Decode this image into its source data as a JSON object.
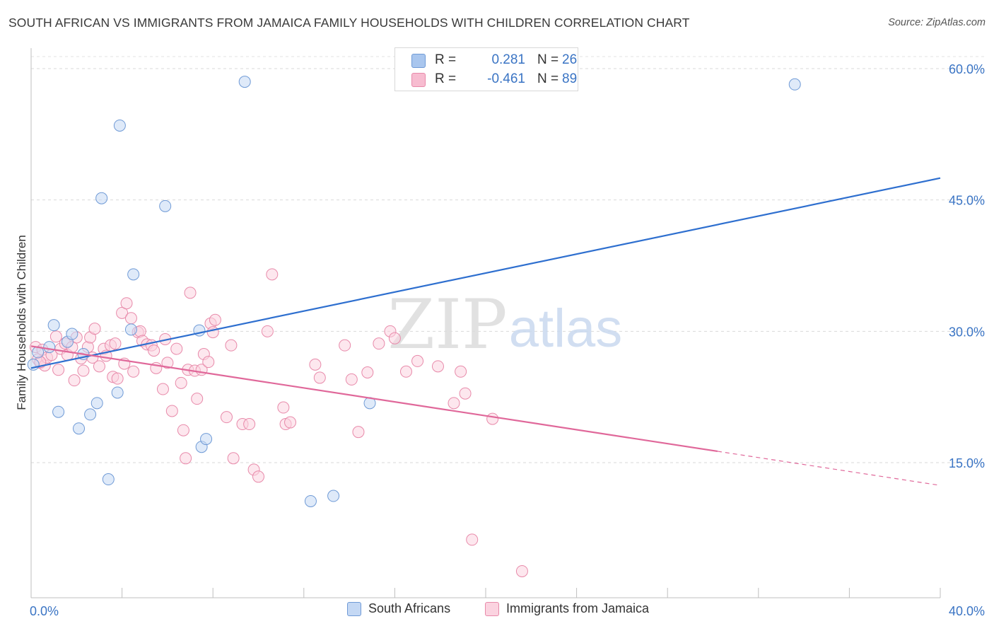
{
  "title": "SOUTH AFRICAN VS IMMIGRANTS FROM JAMAICA FAMILY HOUSEHOLDS WITH CHILDREN CORRELATION CHART",
  "source": "Source: ZipAtlas.com",
  "watermark": {
    "zip": "ZIP",
    "atlas": "atlas"
  },
  "legend_top": [
    {
      "label": "R =",
      "r": "0.281",
      "n_label": "N =",
      "n": "26",
      "color": "#a9c6ee",
      "edge": "#6f9ad6"
    },
    {
      "label": "R =",
      "r": "-0.461",
      "n_label": "N =",
      "n": "89",
      "color": "#f7bcd0",
      "edge": "#e88aaa"
    }
  ],
  "legend_bottom": [
    {
      "label": "South Africans",
      "color": "#c4d8f4",
      "edge": "#6f9ad6"
    },
    {
      "label": "Immigrants from Jamaica",
      "color": "#fbd3e0",
      "edge": "#e88aaa"
    }
  ],
  "chart_data": {
    "type": "scatter",
    "title": "SOUTH AFRICAN VS IMMIGRANTS FROM JAMAICA FAMILY HOUSEHOLDS WITH CHILDREN CORRELATION CHART",
    "xlabel": "",
    "ylabel": "Family Households with Children",
    "xlim": [
      0,
      40
    ],
    "ylim": [
      0,
      60
    ],
    "x_tick_labels": [
      {
        "value": 0,
        "label": "0.0%"
      },
      {
        "value": 40,
        "label": "40.0%"
      }
    ],
    "y_tick_labels": [
      {
        "value": 15,
        "label": "15.0%"
      },
      {
        "value": 30,
        "label": "30.0%"
      },
      {
        "value": 45,
        "label": "45.0%"
      },
      {
        "value": 60,
        "label": "60.0%"
      }
    ],
    "grid": true,
    "series": [
      {
        "name": "South Africans",
        "color": "#6f9ad6",
        "fill": "#c4d8f4",
        "line_color": "#2e6fcf",
        "trend": {
          "x0": 0,
          "y0": 25.8,
          "x1": 40,
          "y1": 47.5,
          "dashed_from": null
        },
        "points": [
          [
            0.1,
            26.2
          ],
          [
            0.3,
            27.6
          ],
          [
            0.8,
            28.2
          ],
          [
            1.0,
            30.7
          ],
          [
            1.2,
            20.8
          ],
          [
            1.6,
            28.8
          ],
          [
            1.8,
            29.7
          ],
          [
            2.1,
            18.9
          ],
          [
            2.3,
            27.4
          ],
          [
            2.6,
            20.5
          ],
          [
            2.9,
            21.8
          ],
          [
            3.1,
            45.2
          ],
          [
            3.4,
            13.1
          ],
          [
            3.8,
            23.0
          ],
          [
            3.9,
            53.5
          ],
          [
            4.4,
            30.2
          ],
          [
            4.5,
            36.5
          ],
          [
            5.9,
            44.3
          ],
          [
            7.4,
            30.1
          ],
          [
            7.5,
            16.8
          ],
          [
            7.7,
            17.7
          ],
          [
            9.4,
            58.5
          ],
          [
            12.3,
            10.6
          ],
          [
            13.3,
            11.2
          ],
          [
            14.9,
            21.8
          ],
          [
            33.6,
            58.2
          ]
        ]
      },
      {
        "name": "Immigrants from Jamaica",
        "color": "#e88aaa",
        "fill": "#fbd3e0",
        "line_color": "#e0689a",
        "trend": {
          "x0": 0,
          "y0": 28.3,
          "x1": 40,
          "y1": 12.4,
          "dashed_from": 30.2
        },
        "points": [
          [
            0.2,
            28.2
          ],
          [
            0.3,
            26.8
          ],
          [
            0.4,
            26.4
          ],
          [
            0.5,
            27.9
          ],
          [
            0.6,
            26.1
          ],
          [
            0.7,
            27.0
          ],
          [
            0.9,
            27.3
          ],
          [
            1.1,
            29.4
          ],
          [
            1.2,
            25.6
          ],
          [
            1.3,
            28.0
          ],
          [
            1.5,
            28.6
          ],
          [
            1.6,
            27.3
          ],
          [
            1.8,
            28.2
          ],
          [
            1.9,
            24.4
          ],
          [
            2.0,
            29.3
          ],
          [
            2.2,
            26.9
          ],
          [
            2.3,
            25.5
          ],
          [
            2.5,
            28.2
          ],
          [
            2.6,
            29.3
          ],
          [
            2.7,
            27.0
          ],
          [
            2.8,
            30.3
          ],
          [
            3.0,
            26.0
          ],
          [
            3.2,
            28.0
          ],
          [
            3.3,
            27.2
          ],
          [
            3.5,
            28.4
          ],
          [
            3.6,
            24.8
          ],
          [
            3.7,
            28.6
          ],
          [
            3.8,
            24.6
          ],
          [
            4.0,
            32.1
          ],
          [
            4.1,
            26.3
          ],
          [
            4.2,
            33.2
          ],
          [
            4.4,
            31.5
          ],
          [
            4.5,
            25.4
          ],
          [
            4.7,
            29.9
          ],
          [
            4.8,
            30.0
          ],
          [
            4.9,
            28.9
          ],
          [
            5.1,
            28.5
          ],
          [
            5.3,
            28.4
          ],
          [
            5.4,
            27.8
          ],
          [
            5.5,
            25.8
          ],
          [
            5.8,
            23.4
          ],
          [
            5.9,
            29.1
          ],
          [
            6.0,
            26.4
          ],
          [
            6.2,
            20.9
          ],
          [
            6.4,
            28.0
          ],
          [
            6.6,
            24.1
          ],
          [
            6.7,
            18.7
          ],
          [
            6.8,
            15.5
          ],
          [
            6.9,
            25.6
          ],
          [
            7.0,
            34.4
          ],
          [
            7.2,
            25.5
          ],
          [
            7.3,
            22.3
          ],
          [
            7.5,
            25.6
          ],
          [
            7.6,
            27.4
          ],
          [
            7.8,
            26.5
          ],
          [
            7.9,
            30.9
          ],
          [
            8.0,
            29.9
          ],
          [
            8.1,
            31.3
          ],
          [
            8.6,
            20.2
          ],
          [
            8.8,
            28.4
          ],
          [
            8.9,
            15.5
          ],
          [
            9.3,
            19.4
          ],
          [
            9.6,
            19.4
          ],
          [
            9.8,
            14.2
          ],
          [
            10.0,
            13.4
          ],
          [
            10.4,
            30.0
          ],
          [
            10.6,
            36.5
          ],
          [
            11.1,
            21.3
          ],
          [
            11.2,
            19.4
          ],
          [
            11.4,
            19.6
          ],
          [
            12.5,
            26.2
          ],
          [
            12.7,
            24.7
          ],
          [
            13.8,
            28.4
          ],
          [
            14.1,
            24.5
          ],
          [
            14.4,
            18.5
          ],
          [
            14.8,
            25.3
          ],
          [
            15.3,
            28.6
          ],
          [
            15.8,
            30.0
          ],
          [
            16.0,
            29.2
          ],
          [
            16.5,
            25.4
          ],
          [
            17.0,
            26.6
          ],
          [
            17.9,
            26.0
          ],
          [
            18.6,
            21.8
          ],
          [
            18.9,
            25.4
          ],
          [
            19.1,
            22.9
          ],
          [
            19.4,
            6.2
          ],
          [
            20.3,
            20.0
          ],
          [
            21.6,
            2.6
          ],
          [
            0.4,
            26.5
          ]
        ]
      }
    ]
  }
}
